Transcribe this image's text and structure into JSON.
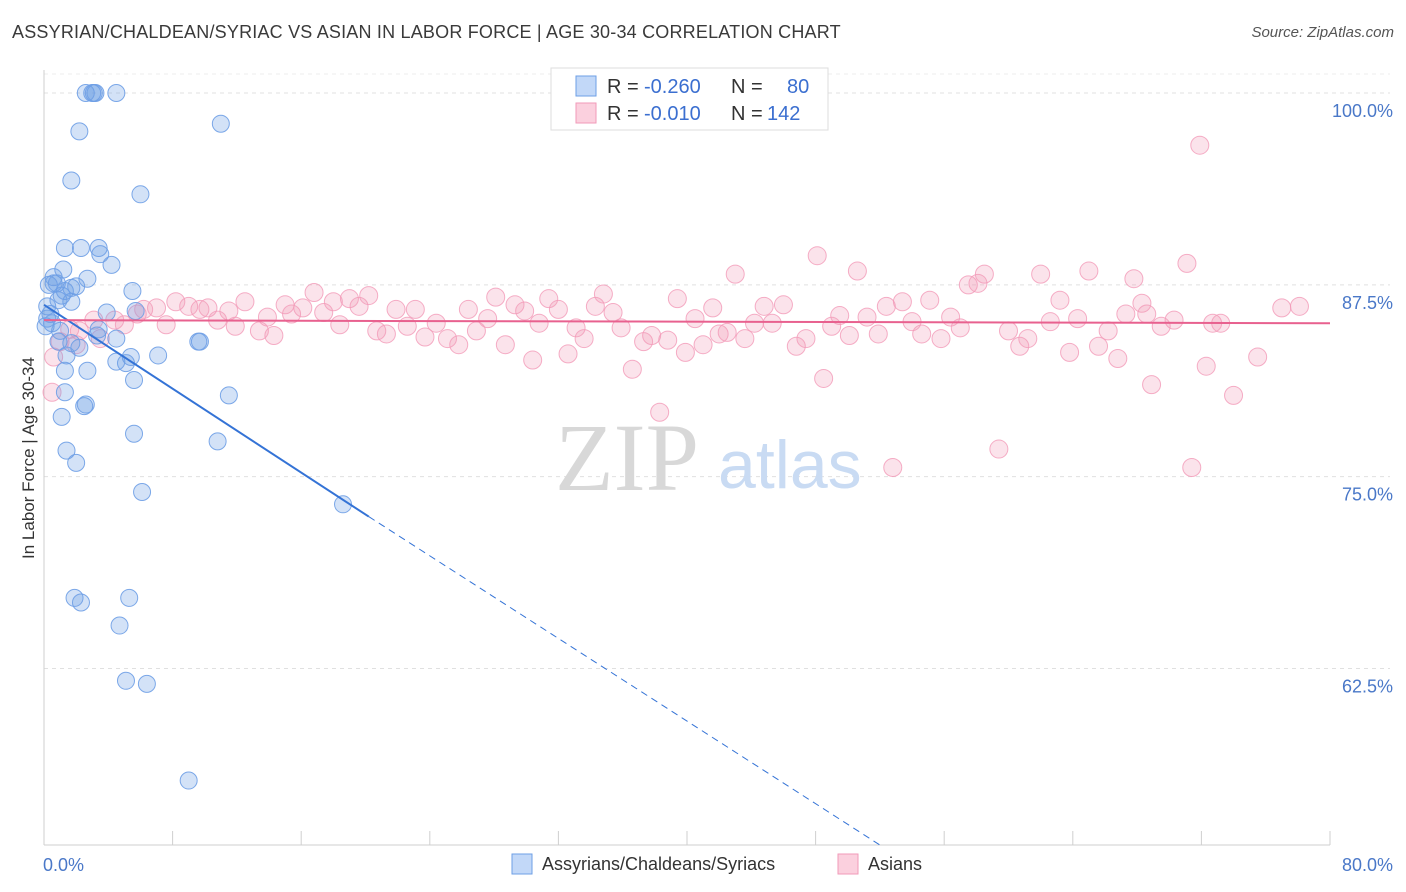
{
  "title": "ASSYRIAN/CHALDEAN/SYRIAC VS ASIAN IN LABOR FORCE | AGE 30-34 CORRELATION CHART",
  "source": "Source: ZipAtlas.com",
  "watermark": {
    "zip": "ZIP",
    "atlas": "atlas"
  },
  "colors": {
    "blue": "#6e9fe6",
    "blue_line": "#3473d6",
    "pink": "#f29ab8",
    "pink_line": "#e8618f"
  },
  "legend": {
    "r_label": "R =",
    "n_label": "N =",
    "rows": [
      {
        "r": "-0.260",
        "n": "80"
      },
      {
        "r": "-0.010",
        "n": "142"
      }
    ]
  },
  "bottom_legend": [
    "Assyrians/Chaldeans/Syriacs",
    "Asians"
  ],
  "chart_data": {
    "type": "scatter",
    "xlabel": "",
    "ylabel": "In Labor Force | Age 30-34",
    "xlim": [
      0,
      80
    ],
    "ylim": [
      51,
      101.5
    ],
    "x_tick_labels": [
      "0.0%",
      "80.0%"
    ],
    "y_ticks": [
      62.5,
      75.0,
      87.5,
      100.0
    ],
    "y_tick_labels": [
      "62.5%",
      "75.0%",
      "87.5%",
      "100.0%"
    ],
    "grid": true,
    "series": [
      {
        "name": "Assyrians/Chaldeans/Syriacs",
        "trend": {
          "x0": 0,
          "y0": 86.2,
          "x1": 20.2,
          "y1": 72.4,
          "dashed_to_x": 52,
          "dashed_to_y": 51
        },
        "points": [
          [
            2.6,
            100
          ],
          [
            3.0,
            100
          ],
          [
            3.1,
            100
          ],
          [
            3.2,
            100
          ],
          [
            4.5,
            100
          ],
          [
            11.0,
            98
          ],
          [
            2.2,
            97.5
          ],
          [
            1.7,
            94.3
          ],
          [
            6.0,
            93.4
          ],
          [
            1.3,
            89.9
          ],
          [
            2.3,
            89.9
          ],
          [
            3.4,
            89.9
          ],
          [
            3.5,
            89.5
          ],
          [
            4.2,
            88.8
          ],
          [
            1.2,
            88.5
          ],
          [
            0.6,
            88
          ],
          [
            2.7,
            87.9
          ],
          [
            0.3,
            87.5
          ],
          [
            0.6,
            87.6
          ],
          [
            0.8,
            87.6
          ],
          [
            1.7,
            87.3
          ],
          [
            1.3,
            87.1
          ],
          [
            2.0,
            87.4
          ],
          [
            5.5,
            87.1
          ],
          [
            1.1,
            86.8
          ],
          [
            0.9,
            86.5
          ],
          [
            1.7,
            86.4
          ],
          [
            0.2,
            86.1
          ],
          [
            0.4,
            85.6
          ],
          [
            3.9,
            85.7
          ],
          [
            5.7,
            85.8
          ],
          [
            0.2,
            85.3
          ],
          [
            0.5,
            85.0
          ],
          [
            0.1,
            84.8
          ],
          [
            1.0,
            84.5
          ],
          [
            3.4,
            84.6
          ],
          [
            3.3,
            84.2
          ],
          [
            4.5,
            84.0
          ],
          [
            9.6,
            83.8
          ],
          [
            9.7,
            83.8
          ],
          [
            0.9,
            83.8
          ],
          [
            1.7,
            83.7
          ],
          [
            2.2,
            83.4
          ],
          [
            1.4,
            82.9
          ],
          [
            5.4,
            82.8
          ],
          [
            7.1,
            82.9
          ],
          [
            4.5,
            82.5
          ],
          [
            5.1,
            82.4
          ],
          [
            1.3,
            81.9
          ],
          [
            2.7,
            81.9
          ],
          [
            5.6,
            81.3
          ],
          [
            11.5,
            80.3
          ],
          [
            1.3,
            80.5
          ],
          [
            2.5,
            79.6
          ],
          [
            2.6,
            79.7
          ],
          [
            1.1,
            78.9
          ],
          [
            5.6,
            77.8
          ],
          [
            10.8,
            77.3
          ],
          [
            1.4,
            76.7
          ],
          [
            2.0,
            75.9
          ],
          [
            6.1,
            74.0
          ],
          [
            18.6,
            73.2
          ],
          [
            1.9,
            67.1
          ],
          [
            5.3,
            67.1
          ],
          [
            2.3,
            66.8
          ],
          [
            4.7,
            65.3
          ],
          [
            5.1,
            61.7
          ],
          [
            6.4,
            61.5
          ],
          [
            9.0,
            55.2
          ]
        ]
      },
      {
        "name": "Asians",
        "trend": {
          "x0": 0,
          "y0": 85.2,
          "x1": 80,
          "y1": 85.0
        },
        "points": [
          [
            0.5,
            80.5
          ],
          [
            0.6,
            82.8
          ],
          [
            1.0,
            83.8
          ],
          [
            1.6,
            84.6
          ],
          [
            2.0,
            83.6
          ],
          [
            2.2,
            84.5
          ],
          [
            3.1,
            85.2
          ],
          [
            3.5,
            84.0
          ],
          [
            4.4,
            85.2
          ],
          [
            5.0,
            84.9
          ],
          [
            5.8,
            85.6
          ],
          [
            6.2,
            85.9
          ],
          [
            7.0,
            86.0
          ],
          [
            7.6,
            84.9
          ],
          [
            8.2,
            86.4
          ],
          [
            9.0,
            86.1
          ],
          [
            9.7,
            85.9
          ],
          [
            10.2,
            86.0
          ],
          [
            10.8,
            85.2
          ],
          [
            11.5,
            85.8
          ],
          [
            11.9,
            84.8
          ],
          [
            12.5,
            86.4
          ],
          [
            13.4,
            84.5
          ],
          [
            13.9,
            85.4
          ],
          [
            14.3,
            84.2
          ],
          [
            15.0,
            86.2
          ],
          [
            15.4,
            85.6
          ],
          [
            16.1,
            86.0
          ],
          [
            16.8,
            87.0
          ],
          [
            17.4,
            85.7
          ],
          [
            18.0,
            86.4
          ],
          [
            18.4,
            84.9
          ],
          [
            19.0,
            86.6
          ],
          [
            19.6,
            86.1
          ],
          [
            20.2,
            86.8
          ],
          [
            20.7,
            84.5
          ],
          [
            21.3,
            84.3
          ],
          [
            21.9,
            85.9
          ],
          [
            22.6,
            84.8
          ],
          [
            23.1,
            85.9
          ],
          [
            23.7,
            84.1
          ],
          [
            24.4,
            85.0
          ],
          [
            25.1,
            84.0
          ],
          [
            25.8,
            83.6
          ],
          [
            26.4,
            85.9
          ],
          [
            26.9,
            84.5
          ],
          [
            27.6,
            85.3
          ],
          [
            28.1,
            86.7
          ],
          [
            28.7,
            83.6
          ],
          [
            29.3,
            86.2
          ],
          [
            29.9,
            85.8
          ],
          [
            30.4,
            82.6
          ],
          [
            30.8,
            85.0
          ],
          [
            31.4,
            86.6
          ],
          [
            32.0,
            85.9
          ],
          [
            32.6,
            83.0
          ],
          [
            33.1,
            84.7
          ],
          [
            33.6,
            84.0
          ],
          [
            34.3,
            86.1
          ],
          [
            34.8,
            86.9
          ],
          [
            35.4,
            85.7
          ],
          [
            35.9,
            84.7
          ],
          [
            36.6,
            82.0
          ],
          [
            37.3,
            83.8
          ],
          [
            37.8,
            84.2
          ],
          [
            38.3,
            79.2
          ],
          [
            38.8,
            83.9
          ],
          [
            39.4,
            86.6
          ],
          [
            39.9,
            83.1
          ],
          [
            40.5,
            85.3
          ],
          [
            41.0,
            83.6
          ],
          [
            41.6,
            86.0
          ],
          [
            42.0,
            84.3
          ],
          [
            42.5,
            84.4
          ],
          [
            43.0,
            88.2
          ],
          [
            43.6,
            84.0
          ],
          [
            44.2,
            85.0
          ],
          [
            44.8,
            86.1
          ],
          [
            45.3,
            85.0
          ],
          [
            46.0,
            86.2
          ],
          [
            46.8,
            83.5
          ],
          [
            47.4,
            84.0
          ],
          [
            48.1,
            89.4
          ],
          [
            48.5,
            81.4
          ],
          [
            49.0,
            84.8
          ],
          [
            49.5,
            85.5
          ],
          [
            50.1,
            84.2
          ],
          [
            50.6,
            88.4
          ],
          [
            51.2,
            85.4
          ],
          [
            51.9,
            84.3
          ],
          [
            52.4,
            86.1
          ],
          [
            52.8,
            75.6
          ],
          [
            53.4,
            86.4
          ],
          [
            54.0,
            85.1
          ],
          [
            54.6,
            84.3
          ],
          [
            55.1,
            86.5
          ],
          [
            55.8,
            84.0
          ],
          [
            56.4,
            85.4
          ],
          [
            57.0,
            84.7
          ],
          [
            57.5,
            87.5
          ],
          [
            58.1,
            87.6
          ],
          [
            58.5,
            88.2
          ],
          [
            59.4,
            76.8
          ],
          [
            60.0,
            84.5
          ],
          [
            60.7,
            83.5
          ],
          [
            61.2,
            84.0
          ],
          [
            62.0,
            88.2
          ],
          [
            62.6,
            85.1
          ],
          [
            63.2,
            86.5
          ],
          [
            63.8,
            83.1
          ],
          [
            64.3,
            85.3
          ],
          [
            65.0,
            88.4
          ],
          [
            65.6,
            83.5
          ],
          [
            66.2,
            84.5
          ],
          [
            66.8,
            82.7
          ],
          [
            67.3,
            85.6
          ],
          [
            67.8,
            87.9
          ],
          [
            68.3,
            86.3
          ],
          [
            68.6,
            85.6
          ],
          [
            68.9,
            81.0
          ],
          [
            69.5,
            84.8
          ],
          [
            70.3,
            85.2
          ],
          [
            71.1,
            88.9
          ],
          [
            71.4,
            75.6
          ],
          [
            71.9,
            96.6
          ],
          [
            72.3,
            82.2
          ],
          [
            72.7,
            85.0
          ],
          [
            73.2,
            85.0
          ],
          [
            74.0,
            80.3
          ],
          [
            75.5,
            82.8
          ],
          [
            77.0,
            86.0
          ],
          [
            78.1,
            86.1
          ]
        ]
      }
    ]
  }
}
